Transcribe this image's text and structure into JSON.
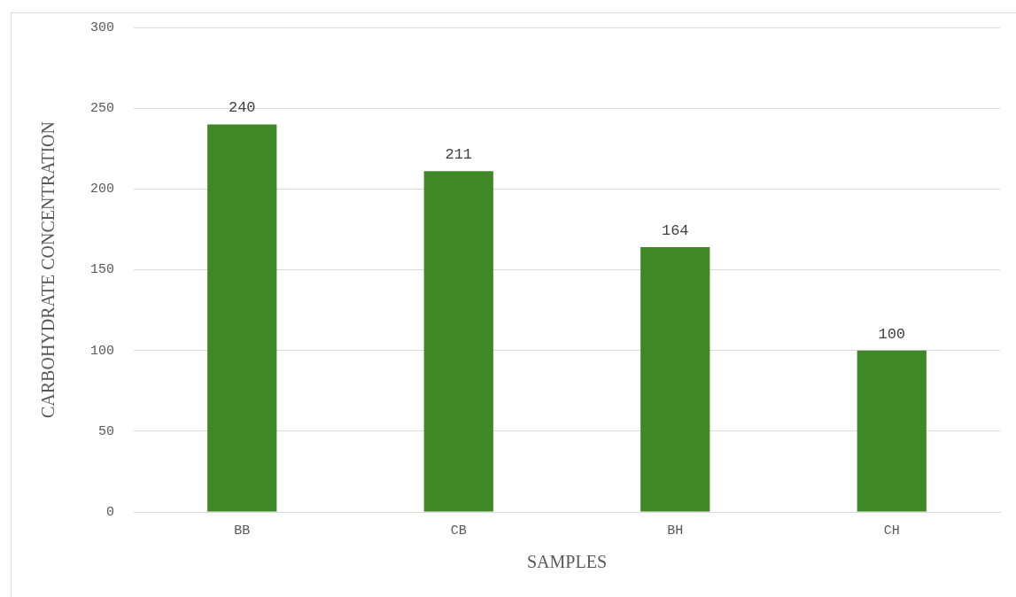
{
  "chart_data": {
    "type": "bar",
    "xlabel": "SAMPLES",
    "ylabel": "CARBOHYDRATE CONCENTRATION",
    "categories": [
      "BB",
      "CB",
      "BH",
      "CH"
    ],
    "values": [
      240,
      211,
      164,
      100
    ],
    "color": "#3f8727",
    "ylim": [
      0,
      300
    ],
    "yticks": [
      0,
      50,
      100,
      150,
      200,
      250,
      300
    ],
    "grid": "y",
    "data_labels": true
  }
}
